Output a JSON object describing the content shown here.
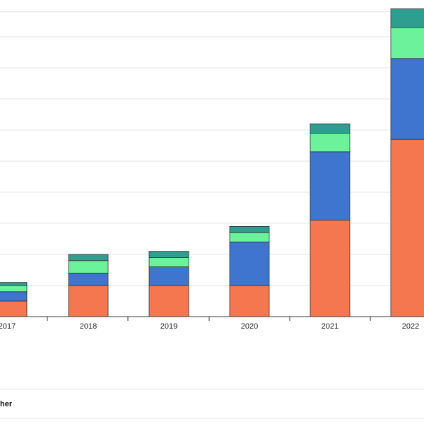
{
  "chart_data": {
    "type": "bar",
    "stacked": true,
    "categories": [
      "2017",
      "2018",
      "2019",
      "2020",
      "2021",
      "2022"
    ],
    "series": [
      {
        "color": "#f4774f",
        "values": [
          2.5,
          5.0,
          5.0,
          5.0,
          15.5,
          28.5
        ]
      },
      {
        "color": "#3f74cf",
        "values": [
          1.5,
          2.0,
          3.0,
          7.0,
          11.0,
          13.0
        ]
      },
      {
        "color": "#6cf29b",
        "values": [
          1.0,
          2.0,
          1.5,
          1.5,
          3.0,
          5.0
        ]
      },
      {
        "color": "#2e9e90",
        "values": [
          0.5,
          1.0,
          1.0,
          1.0,
          1.5,
          3.0
        ]
      }
    ],
    "gridlines": true,
    "legend": {
      "visible_text": "her",
      "placement": "bottom-left"
    }
  }
}
